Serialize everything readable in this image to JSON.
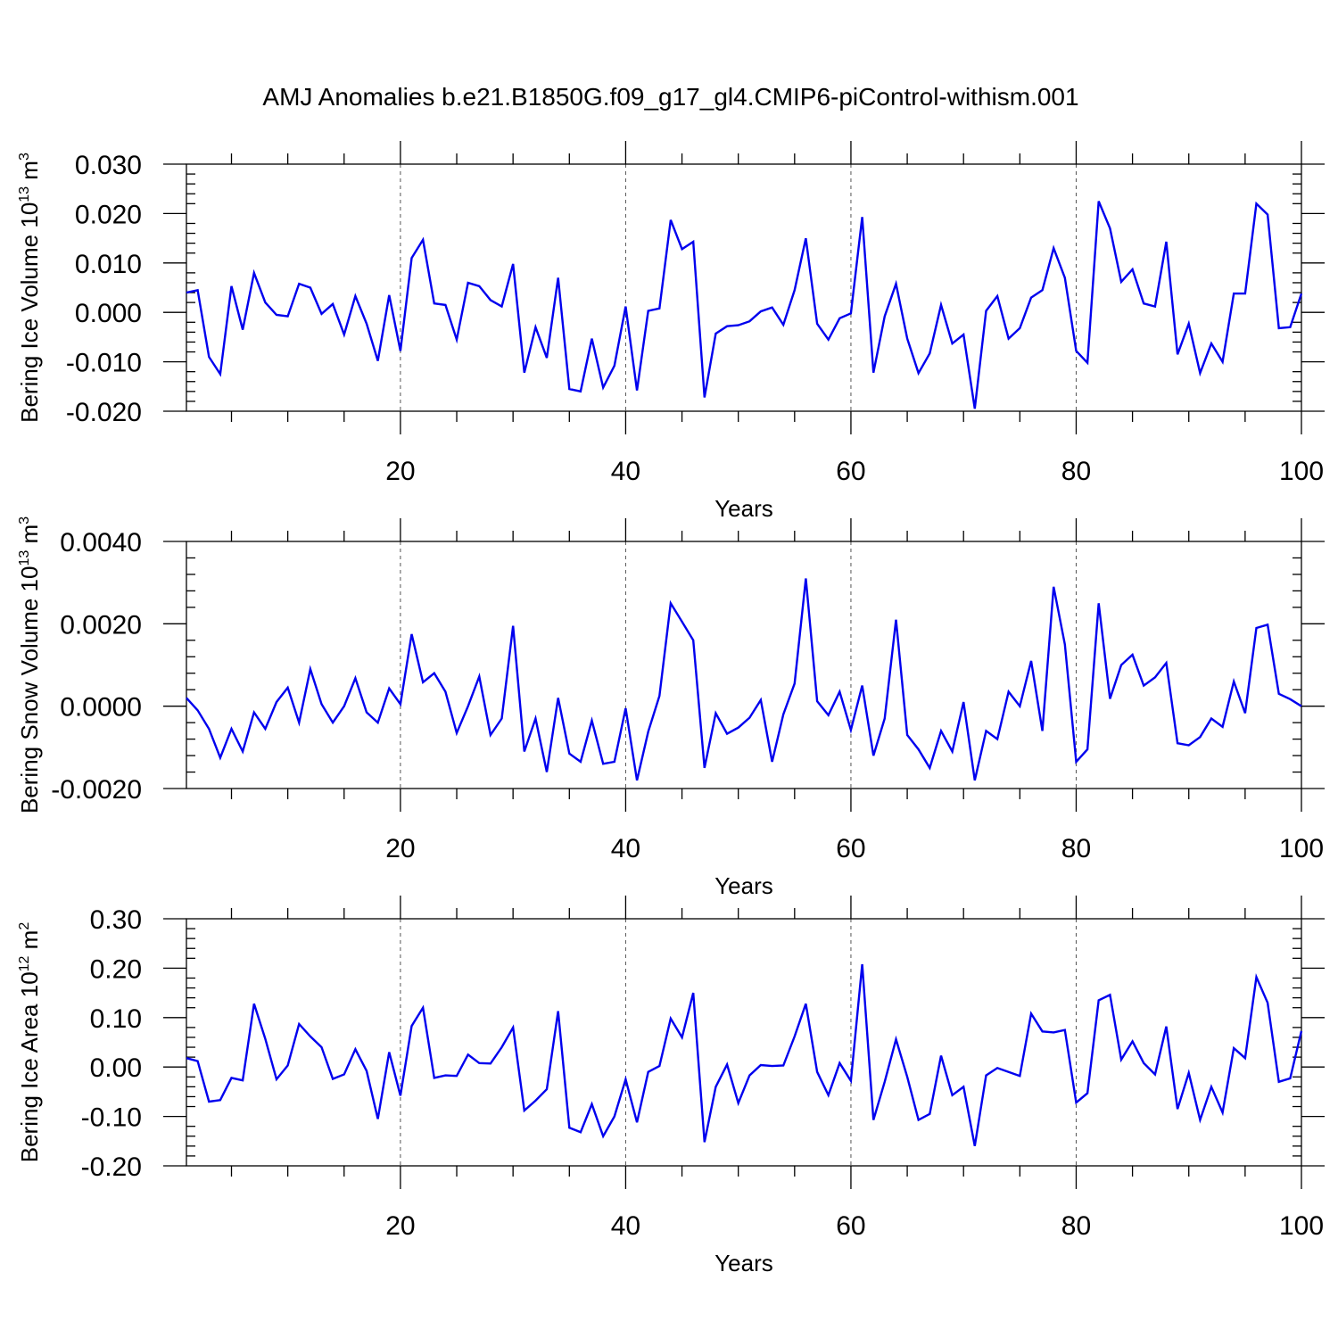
{
  "title": "AMJ Anomalies b.e21.B1850G.f09_g17_gl4.CMIP6-piControl-withism.001",
  "colors": {
    "line": "#0000ee",
    "axis": "#000000",
    "grid": "#555555"
  },
  "chart_data": [
    {
      "type": "line",
      "ylabel": {
        "text": "Bering Ice Volume 10",
        "sup": "13",
        "unit": "m",
        "unit_sup": "3"
      },
      "xlabel": "Years",
      "xlim": [
        1,
        100
      ],
      "ylim": [
        -0.02,
        0.03
      ],
      "xticks": [
        20,
        40,
        60,
        80,
        100
      ],
      "xtick_labels": [
        "20",
        "40",
        "60",
        "80",
        "100"
      ],
      "yticks": [
        -0.02,
        -0.01,
        0.0,
        0.01,
        0.02,
        0.03
      ],
      "ytick_labels": [
        "-0.020",
        "-0.010",
        "0.000",
        "0.010",
        "0.020",
        "0.030"
      ],
      "grid_x": [
        20,
        40,
        60,
        80
      ],
      "x_start": 1,
      "values": [
        0.004,
        0.0045,
        -0.009,
        -0.0125,
        0.0053,
        -0.0035,
        0.008,
        0.002,
        -0.0005,
        -0.0008,
        0.0058,
        0.005,
        -0.0003,
        0.0017,
        -0.0045,
        0.0033,
        -0.0023,
        -0.0098,
        0.0035,
        -0.0078,
        0.011,
        0.0147,
        0.0018,
        0.0015,
        -0.0055,
        0.006,
        0.0053,
        0.0025,
        0.0012,
        0.0098,
        -0.0122,
        -0.003,
        -0.0092,
        0.007,
        -0.0155,
        -0.016,
        -0.0053,
        -0.0152,
        -0.0108,
        0.0012,
        -0.0158,
        0.0003,
        0.0008,
        0.0187,
        0.0128,
        0.0143,
        -0.0172,
        -0.0043,
        -0.0028,
        -0.0026,
        -0.0018,
        0.0002,
        0.001,
        -0.0025,
        0.0045,
        0.015,
        -0.0023,
        -0.0055,
        -0.0012,
        -0.0002,
        0.0193,
        -0.0122,
        -0.0008,
        0.0058,
        -0.0053,
        -0.0123,
        -0.0083,
        0.0015,
        -0.0063,
        -0.0045,
        -0.0195,
        0.0003,
        0.0033,
        -0.0053,
        -0.0032,
        0.003,
        0.0045,
        0.013,
        0.007,
        -0.0078,
        -0.0102,
        0.0225,
        0.017,
        0.0062,
        0.0087,
        0.0018,
        0.0012,
        0.0143,
        -0.0085,
        -0.0023,
        -0.0123,
        -0.0063,
        -0.01,
        0.0038,
        0.0038,
        0.022,
        0.0198,
        -0.0032,
        -0.003,
        0.0038
      ]
    },
    {
      "type": "line",
      "ylabel": {
        "text": "Bering Snow Volume 10",
        "sup": "13",
        "unit": "m",
        "unit_sup": "3"
      },
      "xlabel": "Years",
      "xlim": [
        1,
        100
      ],
      "ylim": [
        -0.002,
        0.004
      ],
      "xticks": [
        20,
        40,
        60,
        80,
        100
      ],
      "xtick_labels": [
        "20",
        "40",
        "60",
        "80",
        "100"
      ],
      "yticks": [
        -0.002,
        0.0,
        0.002,
        0.004
      ],
      "ytick_labels": [
        "-0.0020",
        "0.0000",
        "0.0020",
        "0.0040"
      ],
      "grid_x": [
        20,
        40,
        60,
        80
      ],
      "x_start": 1,
      "values": [
        0.0002,
        -0.0001,
        -0.00055,
        -0.00125,
        -0.00055,
        -0.0011,
        -0.00015,
        -0.00055,
        0.0001,
        0.00045,
        -0.0004,
        0.0009,
        5e-05,
        -0.0004,
        0.0,
        0.00068,
        -0.00015,
        -0.0004,
        0.00043,
        5e-05,
        0.00175,
        0.00058,
        0.0008,
        0.00035,
        -0.00065,
        0.0,
        0.00072,
        -0.0007,
        -0.0003,
        0.00195,
        -0.0011,
        -0.0003,
        -0.0016,
        0.0002,
        -0.00115,
        -0.00135,
        -0.00035,
        -0.0014,
        -0.00135,
        -5e-05,
        -0.0018,
        -0.00062,
        0.00025,
        0.0025,
        0.00205,
        0.0016,
        -0.0015,
        -0.00017,
        -0.00067,
        -0.00052,
        -0.00028,
        0.00015,
        -0.00135,
        -0.0002,
        0.00055,
        0.0031,
        0.00012,
        -0.00022,
        0.00035,
        -0.00058,
        0.0005,
        -0.0012,
        -0.0003,
        0.0021,
        -0.0007,
        -0.00105,
        -0.0015,
        -0.0006,
        -0.0011,
        0.0001,
        -0.0018,
        -0.0006,
        -0.0008,
        0.00035,
        0.0,
        0.0011,
        -0.0006,
        0.0029,
        0.0015,
        -0.00135,
        -0.00105,
        0.0025,
        0.00018,
        0.001,
        0.00125,
        0.0005,
        0.0007,
        0.00105,
        -0.0009,
        -0.00095,
        -0.00075,
        -0.0003,
        -0.0005,
        0.0006,
        -0.00017,
        0.0019,
        0.00198,
        0.0003,
        0.00017,
        0.0
      ]
    },
    {
      "type": "line",
      "ylabel": {
        "text": "Bering Ice Area 10",
        "sup": "12",
        "unit": "m",
        "unit_sup": "2"
      },
      "xlabel": "Years",
      "xlim": [
        1,
        100
      ],
      "ylim": [
        -0.2,
        0.3
      ],
      "xticks": [
        20,
        40,
        60,
        80,
        100
      ],
      "xtick_labels": [
        "20",
        "40",
        "60",
        "80",
        "100"
      ],
      "yticks": [
        -0.2,
        -0.1,
        0.0,
        0.1,
        0.2,
        0.3
      ],
      "ytick_labels": [
        "-0.20",
        "-0.10",
        "0.00",
        "0.10",
        "0.20",
        "0.30"
      ],
      "grid_x": [
        20,
        40,
        60,
        80
      ],
      "x_start": 1,
      "values": [
        0.018,
        0.012,
        -0.07,
        -0.067,
        -0.022,
        -0.027,
        0.128,
        0.057,
        -0.025,
        0.003,
        0.087,
        0.062,
        0.04,
        -0.024,
        -0.015,
        0.036,
        -0.008,
        -0.105,
        0.03,
        -0.058,
        0.083,
        0.12,
        -0.022,
        -0.017,
        -0.018,
        0.025,
        0.008,
        0.007,
        0.04,
        0.08,
        -0.088,
        -0.068,
        -0.045,
        0.113,
        -0.123,
        -0.132,
        -0.075,
        -0.14,
        -0.1,
        -0.025,
        -0.112,
        -0.01,
        0.002,
        0.098,
        0.06,
        0.15,
        -0.152,
        -0.04,
        0.005,
        -0.073,
        -0.017,
        0.004,
        0.002,
        0.003,
        0.062,
        0.128,
        -0.01,
        -0.057,
        0.008,
        -0.028,
        0.208,
        -0.107,
        -0.03,
        0.056,
        -0.02,
        -0.107,
        -0.095,
        0.023,
        -0.057,
        -0.04,
        -0.16,
        -0.017,
        -0.002,
        -0.01,
        -0.018,
        0.108,
        0.072,
        0.07,
        0.075,
        -0.072,
        -0.053,
        0.135,
        0.146,
        0.015,
        0.052,
        0.008,
        -0.015,
        0.082,
        -0.085,
        -0.012,
        -0.107,
        -0.04,
        -0.092,
        0.038,
        0.018,
        0.182,
        0.13,
        -0.03,
        -0.023,
        0.073
      ]
    }
  ]
}
